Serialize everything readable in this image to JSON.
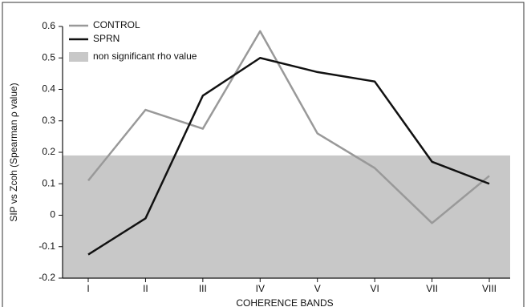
{
  "chart_data": {
    "type": "line",
    "xlabel": "COHERENCE BANDS",
    "ylabel": "SIP vs Zcoh (Spearman ρ value)",
    "categories": [
      "I",
      "II",
      "III",
      "IV",
      "V",
      "VI",
      "VII",
      "VIII"
    ],
    "series": [
      {
        "name": "CONTROL",
        "color": "#999999",
        "values": [
          0.11,
          0.335,
          0.275,
          0.585,
          0.26,
          0.15,
          -0.025,
          0.125
        ]
      },
      {
        "name": "SPRN",
        "color": "#111111",
        "values": [
          -0.125,
          -0.01,
          0.38,
          0.5,
          0.455,
          0.425,
          0.17,
          0.1
        ]
      }
    ],
    "band": {
      "label": "non significant rho value",
      "range": [
        -0.2,
        0.19
      ],
      "color": "#c8c8c8"
    },
    "ylim": [
      -0.2,
      0.6
    ],
    "yticks": [
      -0.2,
      -0.1,
      0,
      0.1,
      0.2,
      0.3,
      0.4,
      0.5,
      0.6
    ]
  }
}
